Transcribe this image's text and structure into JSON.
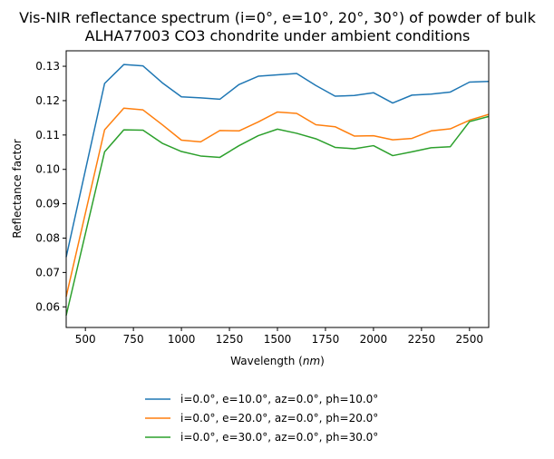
{
  "chart_data": {
    "type": "line",
    "title_lines": [
      "Vis-NIR reflectance spectrum (i=0°, e=10°, 20°, 30°) of powder of bulk",
      "ALHA77003 CO3 chondrite under ambient conditions"
    ],
    "xlabel_prefix": "Wavelength (",
    "xlabel_unit": "nm",
    "xlabel_suffix": ")",
    "ylabel": "Reflectance factor",
    "xlim": [
      400,
      2600
    ],
    "ylim": [
      0.054,
      0.1345
    ],
    "xticks": [
      500,
      750,
      1000,
      1250,
      1500,
      1750,
      2000,
      2250,
      2500
    ],
    "yticks": [
      0.06,
      0.07,
      0.08,
      0.09,
      0.1,
      0.11,
      0.12,
      0.13
    ],
    "xtick_labels": [
      "500",
      "750",
      "1000",
      "1250",
      "1500",
      "1750",
      "2000",
      "2250",
      "2500"
    ],
    "ytick_labels": [
      "0.06",
      "0.07",
      "0.08",
      "0.09",
      "0.10",
      "0.11",
      "0.12",
      "0.13"
    ],
    "legend_position": "bottom-center (below axes)",
    "grid": false,
    "x": [
      400,
      600,
      700,
      800,
      900,
      1000,
      1100,
      1200,
      1300,
      1400,
      1500,
      1600,
      1700,
      1800,
      1900,
      2000,
      2100,
      2200,
      2300,
      2400,
      2500,
      2600
    ],
    "series": [
      {
        "name": "i=0.0°, e=10.0°, az=0.0°, ph=10.0°",
        "color": "#1f77b4",
        "values": [
          0.0745,
          0.125,
          0.1305,
          0.1301,
          0.1252,
          0.1211,
          0.1208,
          0.1204,
          0.1247,
          0.1271,
          0.1275,
          0.1279,
          0.1244,
          0.1213,
          0.1215,
          0.1223,
          0.1193,
          0.1216,
          0.1219,
          0.1225,
          0.1254,
          0.1256
        ]
      },
      {
        "name": "i=0.0°, e=20.0°, az=0.0°, ph=20.0°",
        "color": "#ff7f0e",
        "values": [
          0.063,
          0.1115,
          0.1178,
          0.1173,
          0.113,
          0.1085,
          0.108,
          0.1113,
          0.1112,
          0.1138,
          0.1167,
          0.1163,
          0.113,
          0.1124,
          0.1097,
          0.1098,
          0.1086,
          0.109,
          0.1112,
          0.1118,
          0.1143,
          0.116
        ]
      },
      {
        "name": "i=0.0°, e=30.0°, az=0.0°, ph=30.0°",
        "color": "#2ca02c",
        "values": [
          0.0575,
          0.1051,
          0.1115,
          0.1114,
          0.1076,
          0.1052,
          0.1039,
          0.1035,
          0.1069,
          0.1098,
          0.1117,
          0.1105,
          0.1089,
          0.1064,
          0.106,
          0.1069,
          0.104,
          0.1051,
          0.1063,
          0.1066,
          0.1139,
          0.1154
        ]
      }
    ]
  }
}
